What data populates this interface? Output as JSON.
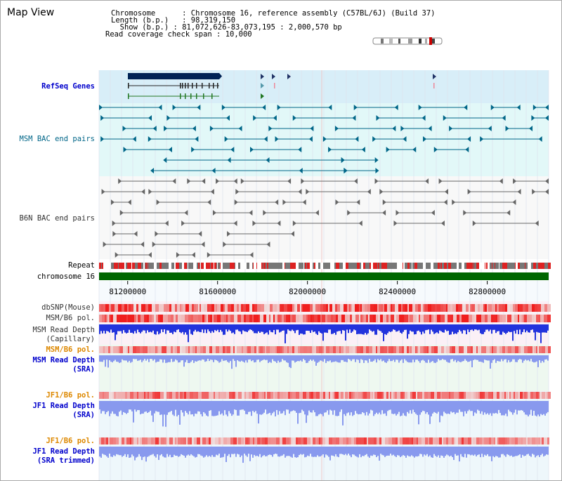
{
  "title": "Map View",
  "info": {
    "chromosome_key": "Chromosome",
    "chromosome_val": "Chromosome 16, reference assembly (C57BL/6J) (Build 37)",
    "length_key": "Length (b.p.)",
    "length_val": "98,319,150",
    "show_key": "Show (b.p.)",
    "show_val": "81,072,626-83,073,195 : 2,000,570 bp",
    "coverage_key": "Read coverage check span",
    "coverage_val": "10,000"
  },
  "tracks": {
    "refseq": "RefSeq Genes",
    "msm_bac": "MSM BAC end pairs",
    "b6n_bac": "B6N BAC end pairs",
    "repeat": "Repeat",
    "chromosome": "chromosome 16",
    "dbsnp": "dbSNP(Mouse)",
    "msm_b6_pol_1": "MSM/B6 pol.",
    "msm_depth_cap_1": "MSM Read Depth",
    "msm_depth_cap_2": "(Capillary)",
    "msm_b6_pol_2": "MSM/B6 pol.",
    "msm_depth_sra_1": "MSM Read Depth",
    "msm_depth_sra_2": "(SRA)",
    "jf1_pol_1": "JF1/B6 pol.",
    "jf1_depth_sra_1": "JF1 Read Depth",
    "jf1_depth_sra_2": "(SRA)",
    "jf1_pol_2": "JF1/B6 pol.",
    "jf1_depth_trim_1": "JF1 Read Depth",
    "jf1_depth_trim_2": "(SRA trimmed)"
  },
  "axis": {
    "ticks": [
      {
        "value": 81200000,
        "label": "81200000"
      },
      {
        "value": 81600000,
        "label": "81600000"
      },
      {
        "value": 82000000,
        "label": "82000000"
      },
      {
        "value": 82400000,
        "label": "82400000"
      },
      {
        "value": 82800000,
        "label": "82800000"
      }
    ]
  },
  "colors": {
    "refseq_bg": "#d8eef8",
    "msm_bg": "#e2f8f8",
    "b6n_bg": "#f8f8f8",
    "msm_feature": "#006688",
    "b6n_feature": "#666666",
    "gene_dark": "#002255",
    "chromosome_bar": "#006600",
    "depth_blue": "#2233dd",
    "depth_light": "#8899ee"
  }
}
